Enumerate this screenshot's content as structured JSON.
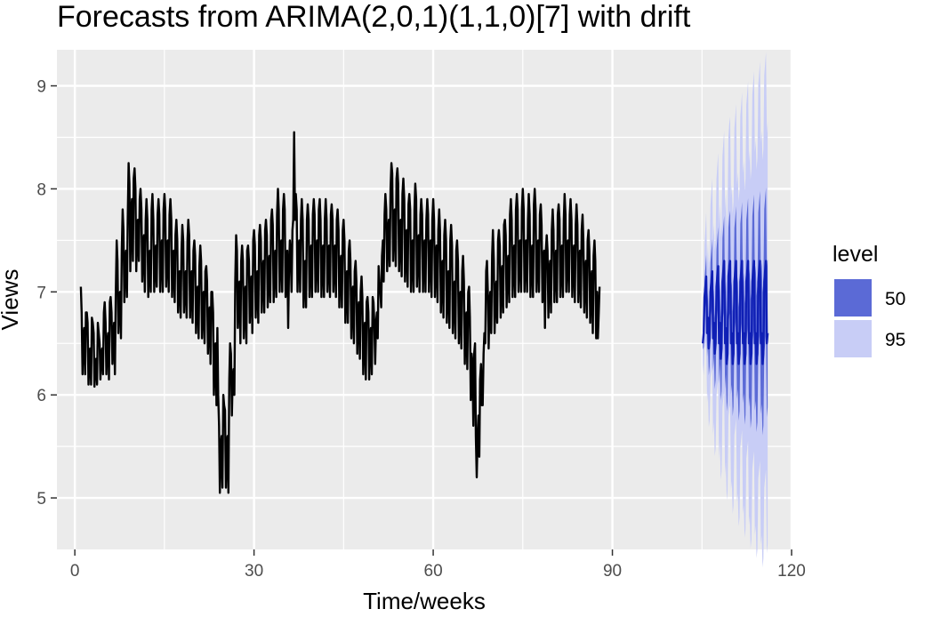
{
  "chart_data": {
    "type": "line",
    "title": "Forecasts from ARIMA(2,0,1)(1,1,0)[7] with drift",
    "xlabel": "Time/weeks",
    "ylabel": "Views",
    "xlim": [
      -3,
      120
    ],
    "ylim": [
      4.5,
      9.35
    ],
    "x_ticks": [
      0,
      30,
      60,
      90,
      120
    ],
    "y_ticks": [
      5,
      6,
      7,
      8,
      9
    ],
    "grid": true,
    "legend": {
      "title": "level",
      "position": "right",
      "entries": [
        {
          "label": "50",
          "color": "#5b6ad6"
        },
        {
          "label": "95",
          "color": "#c8cdf6"
        }
      ]
    },
    "colors": {
      "panel": "#ebebeb",
      "grid_major": "#ffffff",
      "history": "#000000",
      "forecast_mean": "#0f1fb5",
      "pi50": "#5b6ad6",
      "pi95": "#c8cdf6"
    },
    "history": {
      "x_start": 1,
      "step": 0.142857,
      "y": [
        7.05,
        6.8,
        6.2,
        6.55,
        6.65,
        6.2,
        6.8,
        6.8,
        6.7,
        6.1,
        6.35,
        6.45,
        6.1,
        6.75,
        6.7,
        6.6,
        6.08,
        6.3,
        6.35,
        6.1,
        6.7,
        6.6,
        6.5,
        6.15,
        6.4,
        6.45,
        6.2,
        6.8,
        6.9,
        6.7,
        6.2,
        6.5,
        6.6,
        6.15,
        6.9,
        6.95,
        6.8,
        6.3,
        6.6,
        6.7,
        6.2,
        7.0,
        7.5,
        7.3,
        6.6,
        6.95,
        7.0,
        6.55,
        7.4,
        7.8,
        7.6,
        6.9,
        7.3,
        7.4,
        6.95,
        7.7,
        8.25,
        8.05,
        7.2,
        7.8,
        7.9,
        7.3,
        8.1,
        8.2,
        8.0,
        7.2,
        7.6,
        7.7,
        7.3,
        7.9,
        8.0,
        7.8,
        7.1,
        7.45,
        7.55,
        7.0,
        7.7,
        7.9,
        7.7,
        6.95,
        7.3,
        7.4,
        7.0,
        7.8,
        7.95,
        7.7,
        7.0,
        7.35,
        7.45,
        7.05,
        7.75,
        7.9,
        7.75,
        7.0,
        7.4,
        7.5,
        7.0,
        7.8,
        7.95,
        7.8,
        7.05,
        7.4,
        7.5,
        7.0,
        7.75,
        7.9,
        7.7,
        6.95,
        7.3,
        7.4,
        6.9,
        7.55,
        7.7,
        7.5,
        6.8,
        7.1,
        7.2,
        6.75,
        7.4,
        7.65,
        7.5,
        6.8,
        7.1,
        7.2,
        6.75,
        7.5,
        7.7,
        7.55,
        6.75,
        7.1,
        7.2,
        6.7,
        7.4,
        7.5,
        7.35,
        6.6,
        6.95,
        7.05,
        6.55,
        7.25,
        7.45,
        7.3,
        6.55,
        6.9,
        7.0,
        6.5,
        7.2,
        7.25,
        7.1,
        6.4,
        6.75,
        6.85,
        6.3,
        7.0,
        7.0,
        6.8,
        6.0,
        6.4,
        6.5,
        5.9,
        6.65,
        6.0,
        5.7,
        5.05,
        5.5,
        5.6,
        5.1,
        6.0,
        5.9,
        5.85,
        5.1,
        5.5,
        5.6,
        5.05,
        6.15,
        6.5,
        6.4,
        5.8,
        6.15,
        6.25,
        6.0,
        7.1,
        7.55,
        7.4,
        6.65,
        7.0,
        7.1,
        6.5,
        7.3,
        7.45,
        7.3,
        6.55,
        6.95,
        7.05,
        6.5,
        7.4,
        7.45,
        7.3,
        6.7,
        7.05,
        7.15,
        6.6,
        7.5,
        7.6,
        7.45,
        6.75,
        7.1,
        7.2,
        6.7,
        7.55,
        7.65,
        7.5,
        6.8,
        7.2,
        7.3,
        6.8,
        7.6,
        7.7,
        7.55,
        6.85,
        7.25,
        7.35,
        6.9,
        7.7,
        7.8,
        7.65,
        6.9,
        7.3,
        7.4,
        6.95,
        7.75,
        8.0,
        7.8,
        7.0,
        7.4,
        7.5,
        7.0,
        7.8,
        7.95,
        7.8,
        6.95,
        7.3,
        7.4,
        6.65,
        7.2,
        7.5,
        7.35,
        7.0,
        7.6,
        7.7,
        8.55,
        7.7,
        7.95,
        7.8,
        7.0,
        7.4,
        7.5,
        7.0,
        7.7,
        7.9,
        7.7,
        6.85,
        7.2,
        7.3,
        6.85,
        7.7,
        7.85,
        7.7,
        6.95,
        7.35,
        7.45,
        6.95,
        7.75,
        7.9,
        7.75,
        7.0,
        7.4,
        7.5,
        7.0,
        7.8,
        7.9,
        7.7,
        6.95,
        7.35,
        7.45,
        6.95,
        7.7,
        7.9,
        7.7,
        7.0,
        7.35,
        7.45,
        6.95,
        7.75,
        7.85,
        7.7,
        7.0,
        7.35,
        7.45,
        6.95,
        7.7,
        7.8,
        7.6,
        6.85,
        7.25,
        7.35,
        6.85,
        7.6,
        7.7,
        7.5,
        6.7,
        7.1,
        7.2,
        6.7,
        7.4,
        7.5,
        7.3,
        6.55,
        6.95,
        7.05,
        6.5,
        7.2,
        7.3,
        7.1,
        6.4,
        6.8,
        6.9,
        6.35,
        7.0,
        7.15,
        6.95,
        6.2,
        6.6,
        6.7,
        6.15,
        6.9,
        6.95,
        6.8,
        6.15,
        6.55,
        6.65,
        6.2,
        6.95,
        6.9,
        6.7,
        6.3,
        6.7,
        6.8,
        6.55,
        7.25,
        7.1,
        7.0,
        6.85,
        7.35,
        7.5,
        7.1,
        7.75,
        7.95,
        7.8,
        7.2,
        7.6,
        7.7,
        7.25,
        8.0,
        8.25,
        8.15,
        7.3,
        7.7,
        7.8,
        7.25,
        8.1,
        8.2,
        8.05,
        7.2,
        7.6,
        7.7,
        7.15,
        7.95,
        8.1,
        7.9,
        7.1,
        7.5,
        7.6,
        7.05,
        7.85,
        7.95,
        7.8,
        7.0,
        7.4,
        7.5,
        7.0,
        7.8,
        8.05,
        7.9,
        7.05,
        7.45,
        7.55,
        7.0,
        7.75,
        7.9,
        7.75,
        7.0,
        7.4,
        7.5,
        7.0,
        7.7,
        7.9,
        7.75,
        7.0,
        7.4,
        7.5,
        6.95,
        7.7,
        7.9,
        7.7,
        6.95,
        7.35,
        7.45,
        6.9,
        7.6,
        7.8,
        7.6,
        6.8,
        7.2,
        7.3,
        6.75,
        7.55,
        7.7,
        7.5,
        6.7,
        7.1,
        7.2,
        6.65,
        7.5,
        7.65,
        7.45,
        6.6,
        7.0,
        7.1,
        6.55,
        7.4,
        7.5,
        7.3,
        6.5,
        6.9,
        7.0,
        6.45,
        7.2,
        7.35,
        7.1,
        6.3,
        6.7,
        6.8,
        6.25,
        7.0,
        7.05,
        6.75,
        5.95,
        6.4,
        6.3,
        5.7,
        6.4,
        6.5,
        5.6,
        5.2,
        5.6,
        5.8,
        5.4,
        6.15,
        6.3,
        5.9,
        5.9,
        6.4,
        6.6,
        6.5,
        7.2,
        7.3,
        7.0,
        6.45,
        6.9,
        7.0,
        6.6,
        7.35,
        7.6,
        7.3,
        6.6,
        7.0,
        7.1,
        6.7,
        7.5,
        7.6,
        7.45,
        6.75,
        7.15,
        7.25,
        6.8,
        7.65,
        7.7,
        7.55,
        6.85,
        7.25,
        7.35,
        6.9,
        7.75,
        7.9,
        7.7,
        6.95,
        7.35,
        7.45,
        6.95,
        7.8,
        7.95,
        7.8,
        7.0,
        7.4,
        7.5,
        7.0,
        7.8,
        8.0,
        7.8,
        7.0,
        7.4,
        7.5,
        7.0,
        7.7,
        7.95,
        7.75,
        6.95,
        7.35,
        7.45,
        6.95,
        7.85,
        8.0,
        7.8,
        7.0,
        7.4,
        7.5,
        7.0,
        7.75,
        7.85,
        7.65,
        6.9,
        7.3,
        7.4,
        6.65,
        7.4,
        7.55,
        7.4,
        6.75,
        7.2,
        7.3,
        6.8,
        7.6,
        7.8,
        7.6,
        6.9,
        7.3,
        7.4,
        6.9,
        7.75,
        7.85,
        7.7,
        6.95,
        7.35,
        7.45,
        6.95,
        7.7,
        7.95,
        7.75,
        7.0,
        7.4,
        7.5,
        7.0,
        7.75,
        7.9,
        7.7,
        6.95,
        7.35,
        7.45,
        6.9,
        7.65,
        7.85,
        7.65,
        6.9,
        7.3,
        7.4,
        6.85,
        7.6,
        7.75,
        7.5,
        6.8,
        7.2,
        7.3,
        6.75,
        7.5,
        7.6,
        7.4,
        6.7,
        7.1,
        7.2,
        6.6,
        7.35,
        7.5,
        7.3,
        6.55,
        7.0,
        6.55,
        6.8,
        7.05
      ],
      "line_color": "#000000"
    },
    "forecast": {
      "x_start": 105.14,
      "step": 0.142857,
      "mean": [
        6.5,
        6.6,
        6.95,
        7.05,
        7.15,
        6.6,
        6.75,
        6.45,
        6.55,
        7.0,
        7.1,
        7.2,
        6.55,
        6.7,
        6.4,
        6.5,
        7.05,
        7.15,
        7.25,
        6.5,
        6.7,
        6.35,
        6.45,
        7.1,
        7.2,
        7.3,
        6.5,
        6.65,
        6.3,
        6.4,
        7.15,
        7.25,
        7.3,
        6.5,
        6.6,
        6.3,
        6.4,
        7.1,
        7.2,
        7.3,
        6.5,
        6.6,
        6.3,
        6.4,
        7.1,
        7.2,
        7.3,
        6.5,
        6.6,
        6.3,
        6.4,
        7.1,
        7.2,
        7.3,
        6.5,
        6.6,
        6.3,
        6.4,
        7.1,
        7.2,
        7.3,
        6.5,
        6.6,
        6.3,
        6.4,
        7.1,
        7.2,
        7.3,
        6.5,
        6.6,
        6.3,
        6.4,
        7.1,
        7.2,
        7.3,
        6.5,
        6.6
      ],
      "pi50_halfwidth_start": 0.06,
      "pi50_halfwidth_end": 0.72,
      "pi95_halfwidth_start": 0.2,
      "pi95_halfwidth_end": 2.05
    }
  }
}
